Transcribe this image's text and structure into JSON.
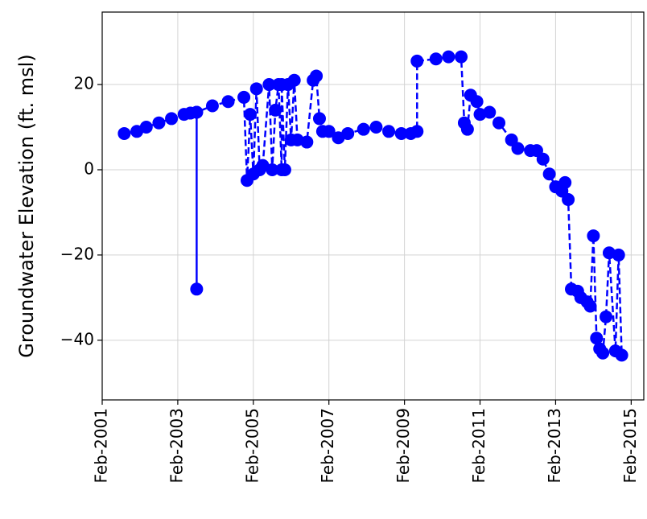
{
  "chart_data": {
    "type": "line",
    "ylabel": "Groundwater Elevation (ft. msl)",
    "x": [
      "2001-09",
      "2002-01",
      "2002-04",
      "2002-08",
      "2002-12",
      "2003-04",
      "2003-06",
      "2003-08",
      "2003-08",
      "2003-08",
      "2004-01",
      "2004-06",
      "2004-11",
      "2004-12",
      "2005-01",
      "2005-02",
      "2005-03",
      "2005-04",
      "2005-05",
      "2005-07",
      "2005-08",
      "2005-09",
      "2005-10",
      "2005-11",
      "2005-11",
      "2005-12",
      "2006-01",
      "2006-02",
      "2006-03",
      "2006-04",
      "2006-07",
      "2006-09",
      "2006-10",
      "2006-11",
      "2006-12",
      "2007-02",
      "2007-05",
      "2007-08",
      "2008-01",
      "2008-05",
      "2008-09",
      "2009-01",
      "2009-04",
      "2009-06",
      "2009-06",
      "2009-12",
      "2010-04",
      "2010-08",
      "2010-09",
      "2010-10",
      "2010-11",
      "2011-01",
      "2011-02",
      "2011-05",
      "2011-08",
      "2011-12",
      "2012-02",
      "2012-06",
      "2012-08",
      "2012-10",
      "2012-12",
      "2013-02",
      "2013-04",
      "2013-05",
      "2013-06",
      "2013-07",
      "2013-09",
      "2013-10",
      "2013-12",
      "2014-01",
      "2014-02",
      "2014-03",
      "2014-04",
      "2014-05",
      "2014-06",
      "2014-07",
      "2014-09",
      "2014-10",
      "2014-11"
    ],
    "series": [
      {
        "color": "#0000ff",
        "values": [
          8.5,
          9,
          10,
          11,
          12,
          13,
          13.3,
          13.5,
          -28,
          13.5,
          15,
          16,
          17,
          -2.5,
          13,
          -1,
          19,
          0,
          1,
          20,
          0,
          14,
          20,
          0,
          20,
          0,
          20,
          7,
          21,
          7,
          6.5,
          21,
          22,
          12,
          9,
          9,
          7.5,
          8.5,
          9.5,
          10,
          9,
          8.5,
          8.5,
          9,
          25.5,
          26,
          26.5,
          26.5,
          11,
          9.5,
          17.5,
          16,
          13,
          13.5,
          11,
          7,
          5,
          4.5,
          4.5,
          2.5,
          -1,
          -4,
          -5,
          -3,
          -7,
          -28,
          -28.5,
          -30,
          -31,
          -32,
          -15.5,
          -39.5,
          -42,
          -43,
          -34.5,
          -19.5,
          -42.5,
          -20,
          -43.5
        ]
      }
    ],
    "ylim": [
      -54,
      37
    ],
    "yticks": [
      {
        "value": -40,
        "label": "−40"
      },
      {
        "value": -20,
        "label": "−20"
      },
      0,
      20
    ],
    "xlim": [
      "2001-02",
      "2015-06"
    ],
    "xticks": [
      {
        "value": "2001-02",
        "label": "Feb-2001"
      },
      {
        "value": "2003-02",
        "label": "Feb-2003"
      },
      {
        "value": "2005-02",
        "label": "Feb-2005"
      },
      {
        "value": "2007-02",
        "label": "Feb-2007"
      },
      {
        "value": "2009-02",
        "label": "Feb-2009"
      },
      {
        "value": "2011-02",
        "label": "Feb-2011"
      },
      {
        "value": "2013-02",
        "label": "Feb-2013"
      },
      {
        "value": "2015-02",
        "label": "Feb-2015"
      }
    ],
    "grid": true
  }
}
